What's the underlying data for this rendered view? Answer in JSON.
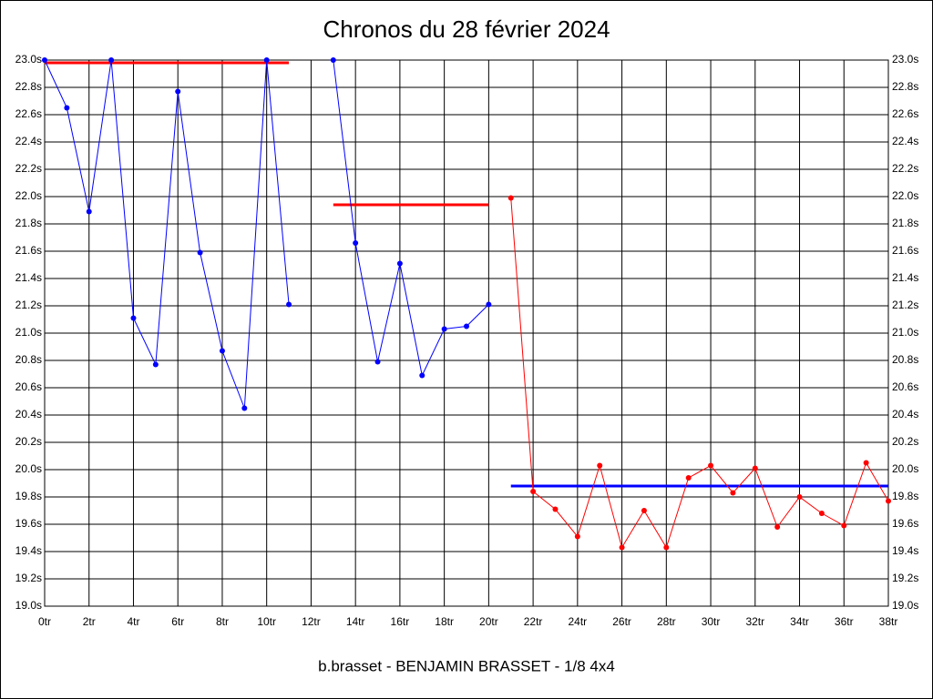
{
  "chart_data": {
    "type": "line",
    "title": "Chronos du 28 février 2024",
    "footer": "b.brasset - BENJAMIN BRASSET - 1/8 4x4",
    "x": [
      0,
      1,
      2,
      3,
      4,
      5,
      6,
      7,
      8,
      9,
      10,
      11,
      12,
      13,
      14,
      15,
      16,
      17,
      18,
      19,
      20,
      21,
      22,
      23,
      24,
      25,
      26,
      27,
      28,
      29,
      30,
      31,
      32,
      33,
      34,
      35,
      36,
      37,
      38
    ],
    "series": [
      {
        "color": "#0000ff",
        "values": [
          23.0,
          22.65,
          21.89,
          23.0,
          21.11,
          20.77,
          22.77,
          21.59,
          20.87,
          20.45,
          23.0,
          21.21,
          null,
          23.0,
          21.66,
          20.79,
          21.51,
          20.69,
          21.03,
          21.05,
          21.21,
          null,
          null,
          null,
          null,
          null,
          null,
          null,
          null,
          null,
          null,
          null,
          null,
          null,
          null,
          null,
          null,
          null,
          null
        ]
      },
      {
        "color": "#ff0000",
        "values": [
          null,
          null,
          null,
          null,
          null,
          null,
          null,
          null,
          null,
          null,
          null,
          null,
          null,
          null,
          null,
          null,
          null,
          null,
          null,
          null,
          null,
          21.99,
          19.84,
          19.71,
          19.51,
          20.03,
          19.43,
          19.7,
          19.43,
          19.94,
          20.03,
          19.83,
          20.01,
          19.58,
          19.8,
          19.68,
          19.59,
          20.05,
          19.77
        ]
      }
    ],
    "reference_lines": [
      {
        "color": "#ff0000",
        "value": 22.98,
        "x_start": 0,
        "x_end": 11
      },
      {
        "color": "#ff0000",
        "value": 21.94,
        "x_start": 13,
        "x_end": 20
      },
      {
        "color": "#0000ff",
        "value": 19.88,
        "x_start": 21,
        "x_end": 38
      }
    ],
    "xlim": [
      0,
      38
    ],
    "xticks": [
      {
        "value": 0,
        "label": "0tr"
      },
      {
        "value": 2,
        "label": "2tr"
      },
      {
        "value": 4,
        "label": "4tr"
      },
      {
        "value": 6,
        "label": "6tr"
      },
      {
        "value": 8,
        "label": "8tr"
      },
      {
        "value": 10,
        "label": "10tr"
      },
      {
        "value": 12,
        "label": "12tr"
      },
      {
        "value": 14,
        "label": "14tr"
      },
      {
        "value": 16,
        "label": "16tr"
      },
      {
        "value": 18,
        "label": "18tr"
      },
      {
        "value": 20,
        "label": "20tr"
      },
      {
        "value": 22,
        "label": "22tr"
      },
      {
        "value": 24,
        "label": "24tr"
      },
      {
        "value": 26,
        "label": "26tr"
      },
      {
        "value": 28,
        "label": "28tr"
      },
      {
        "value": 30,
        "label": "30tr"
      },
      {
        "value": 32,
        "label": "32tr"
      },
      {
        "value": 34,
        "label": "34tr"
      },
      {
        "value": 36,
        "label": "36tr"
      },
      {
        "value": 38,
        "label": "38tr"
      }
    ],
    "ylim": [
      19.0,
      23.0
    ],
    "yticks": [
      {
        "value": 19.0,
        "label": "19.0s"
      },
      {
        "value": 19.2,
        "label": "19.2s"
      },
      {
        "value": 19.4,
        "label": "19.4s"
      },
      {
        "value": 19.6,
        "label": "19.6s"
      },
      {
        "value": 19.8,
        "label": "19.8s"
      },
      {
        "value": 20.0,
        "label": "20.0s"
      },
      {
        "value": 20.2,
        "label": "20.2s"
      },
      {
        "value": 20.4,
        "label": "20.4s"
      },
      {
        "value": 20.6,
        "label": "20.6s"
      },
      {
        "value": 20.8,
        "label": "20.8s"
      },
      {
        "value": 21.0,
        "label": "21.0s"
      },
      {
        "value": 21.2,
        "label": "21.2s"
      },
      {
        "value": 21.4,
        "label": "21.4s"
      },
      {
        "value": 21.6,
        "label": "21.6s"
      },
      {
        "value": 21.8,
        "label": "21.8s"
      },
      {
        "value": 22.0,
        "label": "22.0s"
      },
      {
        "value": 22.2,
        "label": "22.2s"
      },
      {
        "value": 22.4,
        "label": "22.4s"
      },
      {
        "value": 22.6,
        "label": "22.6s"
      },
      {
        "value": 22.8,
        "label": "22.8s"
      },
      {
        "value": 23.0,
        "label": "23.0s"
      }
    ],
    "grid": true
  }
}
